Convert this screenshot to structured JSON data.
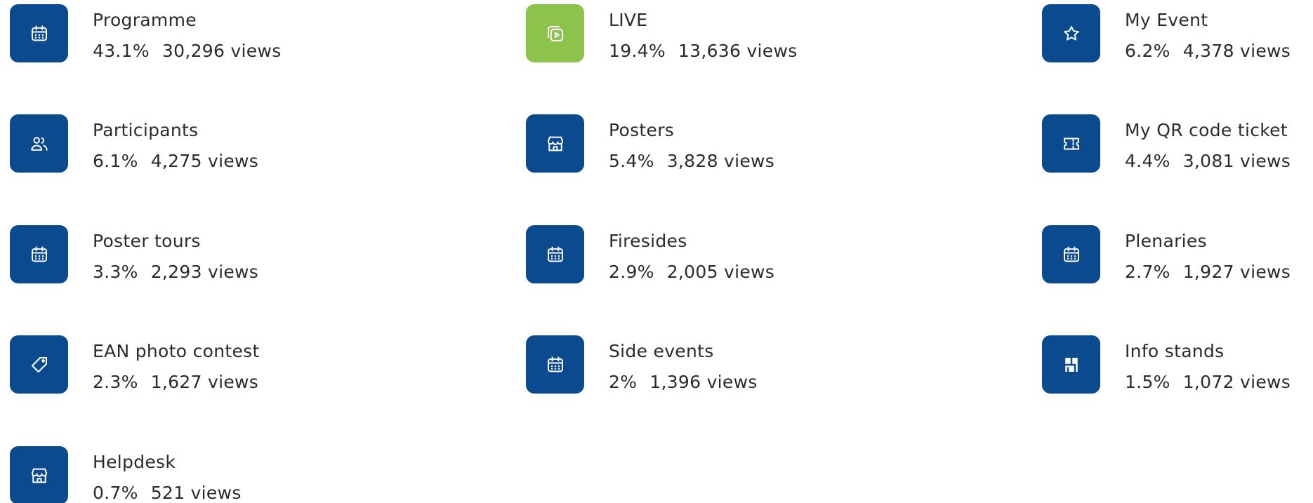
{
  "items": [
    {
      "name": "Programme",
      "percent": "43.1%",
      "views": "30,296 views",
      "color": "#0b4a8f"
    },
    {
      "name": "LIVE",
      "percent": "19.4%",
      "views": "13,636 views",
      "color": "#8cc34a"
    },
    {
      "name": "My Event",
      "percent": "6.2%",
      "views": "4,378 views",
      "color": "#0b4a8f"
    },
    {
      "name": "Participants",
      "percent": "6.1%",
      "views": "4,275 views",
      "color": "#0b4a8f"
    },
    {
      "name": "Posters",
      "percent": "5.4%",
      "views": "3,828 views",
      "color": "#0b4a8f"
    },
    {
      "name": "My QR code ticket",
      "percent": "4.4%",
      "views": "3,081 views",
      "color": "#0b4a8f"
    },
    {
      "name": "Poster tours",
      "percent": "3.3%",
      "views": "2,293 views",
      "color": "#0b4a8f"
    },
    {
      "name": "Firesides",
      "percent": "2.9%",
      "views": "2,005 views",
      "color": "#0b4a8f"
    },
    {
      "name": "Plenaries",
      "percent": "2.7%",
      "views": "1,927 views",
      "color": "#0b4a8f"
    },
    {
      "name": "EAN photo contest",
      "percent": "2.3%",
      "views": "1,627 views",
      "color": "#0b4a8f"
    },
    {
      "name": "Side events",
      "percent": "2%",
      "views": "1,396 views",
      "color": "#0b4a8f"
    },
    {
      "name": "Info stands",
      "percent": "1.5%",
      "views": "1,072 views",
      "color": "#0b4a8f"
    },
    {
      "name": "Helpdesk",
      "percent": "0.7%",
      "views": "521 views",
      "color": "#0b4a8f"
    }
  ]
}
